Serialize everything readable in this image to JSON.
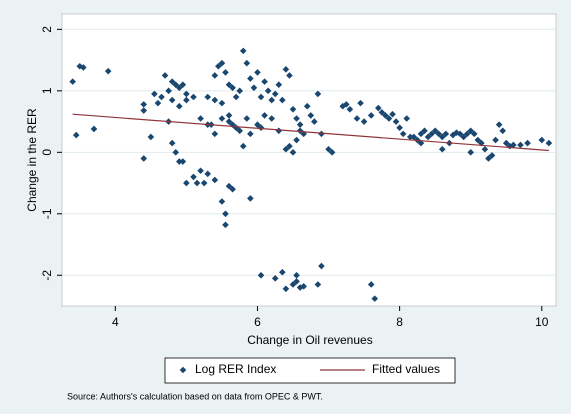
{
  "chart_data": {
    "type": "scatter",
    "x_label": "Change in Oil revenues",
    "y_label": "Change in the RER",
    "note": "Source: Authors's calculation based on data from OPEC & PWT.",
    "xlim": [
      3.25,
      10.2
    ],
    "ylim": [
      -2.5,
      2.25
    ],
    "xticks": [
      4,
      6,
      8,
      10
    ],
    "yticks": [
      -2,
      -1,
      0,
      1,
      2
    ],
    "grid": true,
    "legend": "bottom",
    "series": [
      {
        "name": "Log RER Index",
        "color": "#1a476f",
        "x": [
          3.4,
          3.5,
          3.55,
          3.45,
          3.7,
          3.9,
          4.4,
          4.4,
          4.4,
          4.5,
          4.55,
          4.6,
          4.65,
          4.7,
          4.75,
          4.8,
          4.85,
          4.9,
          4.95,
          5.0,
          4.75,
          4.8,
          4.85,
          4.9,
          4.95,
          5.0,
          4.8,
          4.9,
          5.0,
          5.1,
          5.1,
          5.15,
          5.2,
          5.25,
          5.3,
          5.4,
          5.5,
          5.55,
          5.55,
          5.6,
          5.65,
          5.9,
          5.2,
          5.3,
          5.35,
          5.4,
          5.45,
          5.5,
          5.55,
          5.6,
          5.65,
          5.7,
          5.75,
          5.8,
          5.85,
          5.9,
          5.95,
          6.0,
          6.05,
          6.1,
          6.15,
          6.2,
          6.25,
          6.3,
          6.35,
          6.4,
          6.45,
          6.5,
          6.55,
          6.6,
          6.65,
          6.7,
          6.75,
          6.8,
          6.85,
          6.9,
          7.0,
          7.05,
          5.3,
          5.4,
          5.5,
          5.6,
          5.65,
          5.7,
          5.75,
          5.8,
          5.85,
          5.9,
          6.0,
          6.05,
          6.1,
          6.2,
          6.3,
          6.4,
          6.45,
          6.5,
          6.55,
          6.6,
          5.6,
          5.5,
          5.4,
          6.05,
          6.25,
          6.35,
          6.4,
          6.5,
          6.55,
          6.6,
          6.65,
          6.85,
          6.9,
          7.6,
          7.65,
          6.55,
          7.2,
          7.25,
          7.3,
          7.4,
          7.45,
          7.5,
          7.6,
          7.7,
          7.75,
          7.8,
          7.85,
          7.9,
          7.95,
          8.0,
          8.05,
          8.1,
          8.15,
          8.2,
          8.25,
          8.3,
          8.35,
          8.4,
          8.45,
          8.5,
          8.55,
          8.6,
          8.65,
          8.7,
          8.75,
          8.8,
          8.85,
          8.9,
          8.95,
          9.0,
          9.05,
          9.1,
          9.15,
          9.2,
          9.25,
          9.3,
          9.35,
          9.4,
          9.45,
          9.5,
          9.55,
          9.6,
          9.7,
          9.8,
          10.0,
          10.1,
          8.6,
          9.0,
          8.3
        ],
        "values": [
          1.15,
          1.4,
          1.38,
          0.28,
          0.38,
          1.32,
          0.78,
          0.68,
          -0.1,
          0.25,
          0.95,
          0.8,
          0.9,
          1.25,
          1.0,
          1.15,
          1.1,
          1.05,
          1.1,
          0.95,
          0.5,
          0.15,
          0.0,
          -0.15,
          -0.15,
          -0.5,
          0.85,
          0.75,
          0.85,
          0.9,
          -0.4,
          -0.5,
          -0.3,
          -0.5,
          -0.35,
          -0.45,
          -0.8,
          -1.0,
          -1.18,
          -0.55,
          -0.6,
          -0.75,
          0.55,
          0.45,
          0.45,
          1.25,
          1.4,
          1.45,
          1.3,
          1.1,
          1.05,
          0.9,
          1.0,
          1.65,
          1.45,
          1.2,
          1.05,
          1.3,
          0.9,
          1.15,
          1.0,
          0.85,
          0.95,
          1.1,
          0.85,
          1.35,
          1.25,
          0.7,
          0.55,
          0.45,
          0.3,
          0.75,
          0.6,
          0.5,
          0.95,
          0.3,
          0.05,
          0.0,
          0.9,
          0.85,
          0.8,
          0.6,
          0.45,
          0.4,
          0.35,
          0.1,
          0.55,
          0.3,
          0.45,
          0.4,
          0.6,
          0.55,
          0.35,
          0.05,
          0.1,
          0.0,
          0.2,
          0.35,
          0.5,
          0.55,
          0.3,
          -2.0,
          -2.05,
          -1.95,
          -2.22,
          -2.15,
          -2.0,
          -2.2,
          -2.18,
          -2.15,
          -1.85,
          -2.15,
          -2.38,
          -2.1,
          0.75,
          0.78,
          0.7,
          0.55,
          0.8,
          0.5,
          0.6,
          0.72,
          0.65,
          0.6,
          0.55,
          0.62,
          0.5,
          0.4,
          0.3,
          0.55,
          0.25,
          0.25,
          0.2,
          0.3,
          0.35,
          0.25,
          0.3,
          0.35,
          0.3,
          0.25,
          0.3,
          0.15,
          0.28,
          0.32,
          0.3,
          0.25,
          0.3,
          0.35,
          0.3,
          0.2,
          0.15,
          0.05,
          -0.1,
          -0.05,
          0.2,
          0.45,
          0.35,
          0.15,
          0.1,
          0.12,
          0.12,
          0.15,
          0.2,
          0.15,
          0.05,
          0.0,
          0.15
        ]
      },
      {
        "name": "Fitted values",
        "color": "#90353b",
        "type": "line",
        "x": [
          3.4,
          10.1
        ],
        "values": [
          0.62,
          0.03
        ]
      }
    ]
  }
}
